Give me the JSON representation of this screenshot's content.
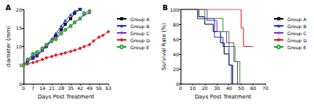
{
  "chart_data": [
    {
      "type": "line",
      "title": "A",
      "x_label": "Days Post Treatment",
      "y_label": "diameter (mm)",
      "xlim": [
        0,
        63
      ],
      "xticks": [
        0,
        7,
        14,
        21,
        28,
        35,
        42,
        49,
        56,
        63
      ],
      "ylim": [
        0,
        20
      ],
      "yticks": [
        0,
        5,
        10,
        15,
        20
      ],
      "grid": false,
      "legend": "right",
      "series": [
        {
          "name": "Group A",
          "color": "#000000",
          "marker": "rect",
          "x": [
            0,
            3,
            7,
            10,
            14,
            17,
            21,
            24,
            28,
            31,
            35,
            38,
            42
          ],
          "values": [
            5,
            6,
            7,
            7.5,
            9,
            10,
            11.5,
            13,
            14.5,
            16,
            17.5,
            19,
            20
          ]
        },
        {
          "name": "Group B",
          "color": "#1f3bd6",
          "marker": "triangle",
          "x": [
            0,
            3,
            7,
            10,
            14,
            17,
            21,
            24,
            28,
            31,
            35,
            38,
            42
          ],
          "values": [
            5,
            6,
            6.8,
            7.5,
            9,
            10.5,
            12,
            13.5,
            15.5,
            17,
            18.5,
            19.5,
            20
          ]
        },
        {
          "name": "Group C",
          "color": "#8a2be2",
          "marker": "diamond",
          "x": [
            0,
            3,
            7,
            10,
            14,
            17,
            21,
            24,
            28,
            31,
            35,
            38,
            42,
            45,
            49
          ],
          "values": [
            5,
            6.5,
            7.5,
            8,
            9,
            10,
            11.5,
            12.5,
            13.5,
            14.5,
            15.5,
            16.5,
            17.5,
            18.5,
            19
          ]
        },
        {
          "name": "Group D",
          "color": "#e0201b",
          "marker": "circle",
          "x": [
            0,
            3,
            7,
            10,
            14,
            17,
            21,
            24,
            28,
            31,
            35,
            38,
            42,
            45,
            49,
            52,
            56,
            59,
            63
          ],
          "values": [
            5,
            5.3,
            5.7,
            6,
            6.5,
            7,
            7.3,
            7.7,
            8,
            8.3,
            8.7,
            9,
            9.5,
            10,
            10.5,
            11.5,
            12.5,
            13,
            14
          ]
        },
        {
          "name": "Group E",
          "color": "#2e9e2e",
          "marker": "emptyCircle",
          "x": [
            0,
            3,
            7,
            10,
            14,
            17,
            21,
            24,
            28,
            31,
            35,
            38,
            42,
            45,
            49
          ],
          "values": [
            5,
            6.5,
            8,
            8.5,
            9.5,
            10.5,
            11.5,
            12,
            13.5,
            14.5,
            15.5,
            16.5,
            17.5,
            19,
            19.5
          ]
        }
      ]
    },
    {
      "type": "line",
      "title": "B",
      "x_label": "Days Post Treatment",
      "y_label": "Survival Rate (%)",
      "xlim": [
        0,
        70
      ],
      "xticks": [
        0,
        10,
        20,
        30,
        40,
        50,
        60,
        70
      ],
      "ylim": [
        0,
        100
      ],
      "yticks": [
        0,
        20,
        40,
        60,
        80,
        100
      ],
      "grid": false,
      "legend": "right",
      "line_style": "step",
      "series": [
        {
          "name": "Group A",
          "color": "#000000",
          "x": [
            0,
            15,
            20,
            27,
            33,
            36,
            40,
            43
          ],
          "values": [
            100,
            90,
            80,
            70,
            55,
            40,
            25,
            0
          ]
        },
        {
          "name": "Group B",
          "color": "#1f3bd6",
          "x": [
            0,
            14,
            28,
            35,
            40,
            42
          ],
          "values": [
            100,
            87.5,
            62.5,
            50,
            25,
            0
          ]
        },
        {
          "name": "Group C",
          "color": "#8a2be2",
          "x": [
            0,
            22,
            30,
            38,
            44,
            47
          ],
          "values": [
            100,
            85,
            70,
            55,
            30,
            0
          ]
        },
        {
          "name": "Group D",
          "color": "#e0201b",
          "x": [
            0,
            50,
            52,
            60
          ],
          "values": [
            100,
            75,
            50,
            50
          ]
        },
        {
          "name": "Group E",
          "color": "#2e9e2e",
          "x": [
            0,
            20,
            35,
            40,
            45,
            49
          ],
          "values": [
            100,
            88,
            70,
            50,
            30,
            0
          ]
        }
      ]
    }
  ]
}
